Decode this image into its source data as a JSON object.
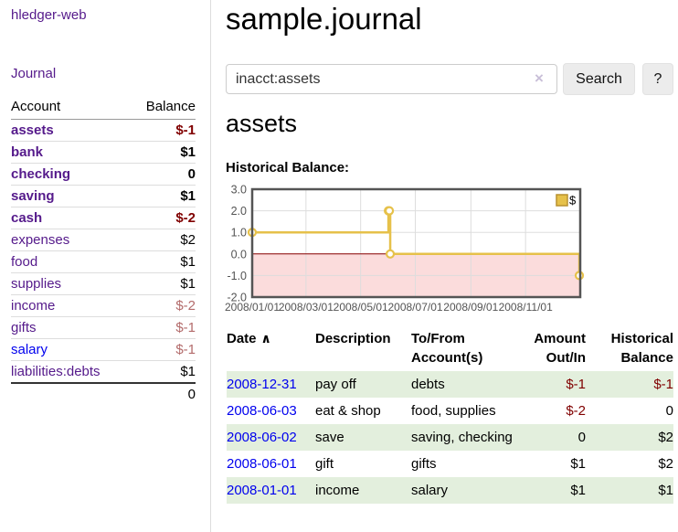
{
  "sidebar": {
    "brand": "hledger-web",
    "nav_journal": "Journal",
    "accounts_header": {
      "account": "Account",
      "balance": "Balance"
    },
    "accounts": [
      {
        "name": "assets",
        "balance": "$-1",
        "indent": 0,
        "bold": true
      },
      {
        "name": "bank",
        "balance": "$1",
        "indent": 1,
        "bold": true
      },
      {
        "name": "checking",
        "balance": "0",
        "indent": 2,
        "bold": true
      },
      {
        "name": "saving",
        "balance": "$1",
        "indent": 2,
        "bold": true
      },
      {
        "name": "cash",
        "balance": "$-2",
        "indent": 1,
        "bold": true
      },
      {
        "name": "expenses",
        "balance": "$2",
        "indent": 0,
        "bold": false
      },
      {
        "name": "food",
        "balance": "$1",
        "indent": 1,
        "bold": false
      },
      {
        "name": "supplies",
        "balance": "$1",
        "indent": 1,
        "bold": false
      },
      {
        "name": "income",
        "balance": "$-2",
        "indent": 0,
        "bold": false
      },
      {
        "name": "gifts",
        "balance": "$-1",
        "indent": 1,
        "bold": false
      },
      {
        "name": "salary",
        "balance": "$-1",
        "indent": 1,
        "bold": false
      },
      {
        "name": "liabilities:debts",
        "balance": "$1",
        "indent": 0,
        "bold": false
      }
    ],
    "total": "0"
  },
  "header": {
    "title": "sample.journal"
  },
  "search": {
    "value": "inacct:assets",
    "clear_label": "×",
    "button_label": "Search",
    "help_label": "?"
  },
  "account_page": {
    "title": "assets",
    "chart_label": "Historical Balance:"
  },
  "chart_data": {
    "type": "line",
    "title": "Historical Balance",
    "step": true,
    "xlim": [
      "2008-01-01",
      "2009-01-01"
    ],
    "ylim": [
      -2,
      3
    ],
    "x_ticks": [
      "2008/01/01",
      "2008/03/01",
      "2008/05/01",
      "2008/07/01",
      "2008/09/01",
      "2008/11/01"
    ],
    "y_ticks": [
      "3.0",
      "2.0",
      "1.0",
      "0.0",
      "-1.0",
      "-2.0"
    ],
    "grid": true,
    "legend": {
      "position": "top-right",
      "label": "$",
      "swatch_color": "#e6c14a",
      "swatch_border": "#b8912f"
    },
    "zero_line_color": "#8b0000",
    "negative_region_fill": "#fbdcdc",
    "grid_color": "#dddddd",
    "border_color": "#545454",
    "axis_text_color": "#545454",
    "series": [
      {
        "name": "$",
        "color": "#e6c14a",
        "marker_fill": "#ffffff",
        "points": [
          [
            "2008-01-01",
            1
          ],
          [
            "2008-06-01",
            2
          ],
          [
            "2008-06-02",
            2
          ],
          [
            "2008-06-03",
            0
          ],
          [
            "2008-12-31",
            -1
          ]
        ]
      }
    ]
  },
  "register": {
    "sort_icon": "∧",
    "columns": {
      "date": "Date",
      "description": "Description",
      "accounts": "To/From Account(s)",
      "amount": "Amount Out/In",
      "balance": "Historical Balance"
    },
    "rows": [
      {
        "date": "2008-12-31",
        "description": "pay off",
        "accounts": "debts",
        "amount": "$-1",
        "balance": "$-1"
      },
      {
        "date": "2008-06-03",
        "description": "eat & shop",
        "accounts": "food, supplies",
        "amount": "$-2",
        "balance": "0"
      },
      {
        "date": "2008-06-02",
        "description": "save",
        "accounts": "saving, checking",
        "amount": "0",
        "balance": "$2"
      },
      {
        "date": "2008-06-01",
        "description": "gift",
        "accounts": "gifts",
        "amount": "$1",
        "balance": "$2"
      },
      {
        "date": "2008-01-01",
        "description": "income",
        "accounts": "salary",
        "amount": "$1",
        "balance": "$1"
      }
    ]
  }
}
